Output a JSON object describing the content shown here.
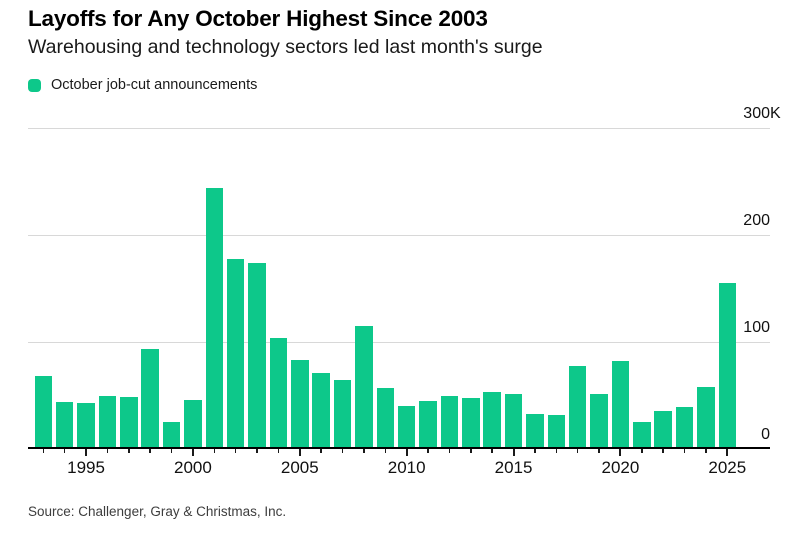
{
  "header": {
    "title": "Layoffs for Any October Highest Since 2003",
    "subtitle": "Warehousing and technology sectors led last month's surge"
  },
  "legend": {
    "label": "October job-cut announcements",
    "swatch_color": "#0dc88a"
  },
  "source": {
    "text": "Source: Challenger, Gray & Christmas, Inc."
  },
  "colors": {
    "bar": "#0dc88a",
    "gridline": "#d8d8d8",
    "axis": "#000000"
  },
  "chart_data": {
    "type": "bar",
    "title": "Layoffs for Any October Highest Since 2003",
    "subtitle": "Warehousing and technology sectors led last month's surge",
    "legend_entries": [
      "October job-cut announcements"
    ],
    "legend_position": "top-left",
    "unit": "thousands of announced job cuts",
    "x": [
      1993,
      1994,
      1995,
      1996,
      1997,
      1998,
      1999,
      2000,
      2001,
      2002,
      2003,
      2004,
      2005,
      2006,
      2007,
      2008,
      2009,
      2010,
      2011,
      2012,
      2013,
      2014,
      2015,
      2016,
      2017,
      2018,
      2019,
      2020,
      2021,
      2022,
      2023,
      2024,
      2025
    ],
    "values": [
      66,
      42,
      41,
      48,
      47,
      92,
      23,
      44,
      242,
      176,
      172,
      102,
      81,
      69,
      63,
      113,
      55,
      38,
      43,
      48,
      46,
      51,
      50,
      31,
      30,
      76,
      50,
      80,
      23,
      34,
      37,
      56,
      153
    ],
    "x_tick_labels": [
      "1995",
      "2000",
      "2005",
      "2010",
      "2015",
      "2020",
      "2025"
    ],
    "y_ticks": [
      {
        "value": 0,
        "label": "0",
        "suffix": ""
      },
      {
        "value": 100,
        "label": "100",
        "suffix": ""
      },
      {
        "value": 200,
        "label": "200",
        "suffix": ""
      },
      {
        "value": 300,
        "label": "300",
        "suffix": "K"
      }
    ],
    "ylim": [
      0,
      300
    ],
    "grid": "horizontal",
    "y_axis_side": "right",
    "bar_color": "#0dc88a"
  }
}
